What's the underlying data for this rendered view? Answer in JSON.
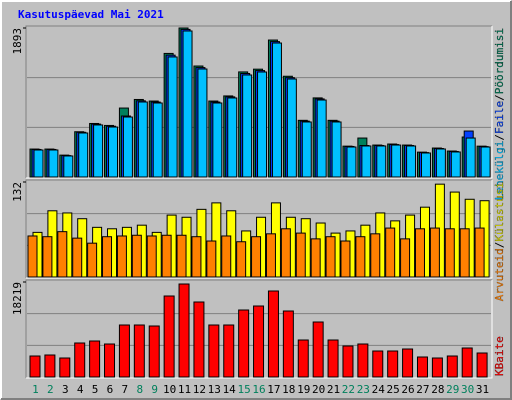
{
  "title": "Kasutuspäevad Mai 2021",
  "legend_separator": "/",
  "chart_data": [
    {
      "type": "bar",
      "ylim": [
        0,
        1893
      ],
      "yticks": [
        1893
      ],
      "series": [
        {
          "name": "Pöördumisi",
          "color": "#00805c",
          "values": [
            355,
            355,
            278,
            575,
            680,
            655,
            876,
            985,
            965,
            1570,
            1893,
            1410,
            965,
            1030,
            1335,
            1370,
            1740,
            1280,
            720,
            1005,
            720,
            392,
            495,
            406,
            419,
            406,
            316,
            368,
            330,
            508,
            392
          ]
        },
        {
          "name": "Faile",
          "color": "#0040ff",
          "values": [
            350,
            350,
            272,
            568,
            672,
            645,
            775,
            968,
            952,
            1548,
            1875,
            1390,
            952,
            1018,
            1315,
            1352,
            1720,
            1262,
            710,
            992,
            710,
            388,
            400,
            400,
            412,
            400,
            310,
            362,
            324,
            584,
            386
          ]
        },
        {
          "name": "Lehekülgi",
          "color": "#00c0ff",
          "values": [
            343,
            343,
            267,
            559,
            661,
            635,
            762,
            953,
            940,
            1525,
            1855,
            1372,
            940,
            1004,
            1296,
            1334,
            1702,
            1245,
            699,
            978,
            699,
            381,
            394,
            394,
            406,
            394,
            305,
            356,
            318,
            495,
            381
          ]
        }
      ]
    },
    {
      "type": "bar",
      "ylim": [
        0,
        132
      ],
      "yticks": [
        132
      ],
      "series": [
        {
          "name": "Külastusi",
          "color": "#ffff00",
          "values": [
            62,
            92,
            89,
            81,
            69,
            67,
            69,
            72,
            62,
            86,
            83,
            94,
            103,
            92,
            64,
            83,
            103,
            83,
            81,
            75,
            61,
            64,
            72,
            89,
            78,
            86,
            97,
            129,
            118,
            108,
            106
          ]
        },
        {
          "name": "Arvuteid",
          "color": "#ff8000",
          "values": [
            57,
            56,
            63,
            54,
            47,
            56,
            57,
            58,
            57,
            58,
            58,
            56,
            50,
            57,
            49,
            56,
            60,
            67,
            61,
            53,
            56,
            50,
            56,
            60,
            68,
            53,
            67,
            68,
            67,
            67,
            68
          ]
        }
      ]
    },
    {
      "type": "bar",
      "ylim": [
        0,
        18219
      ],
      "yticks": [
        18219
      ],
      "categories": [
        "1",
        "2",
        "3",
        "4",
        "5",
        "6",
        "7",
        "8",
        "9",
        "10",
        "11",
        "12",
        "13",
        "14",
        "15",
        "16",
        "17",
        "18",
        "19",
        "20",
        "21",
        "22",
        "23",
        "24",
        "25",
        "26",
        "27",
        "28",
        "29",
        "30",
        "31"
      ],
      "category_colors": [
        "#00805c",
        "#00805c",
        "#000000",
        "#000000",
        "#000000",
        "#000000",
        "#000000",
        "#00805c",
        "#00805c",
        "#000000",
        "#000000",
        "#000000",
        "#000000",
        "#000000",
        "#00805c",
        "#00805c",
        "#000000",
        "#000000",
        "#000000",
        "#000000",
        "#000000",
        "#00805c",
        "#00805c",
        "#000000",
        "#000000",
        "#000000",
        "#000000",
        "#000000",
        "#00805c",
        "#00805c",
        "#000000"
      ],
      "series": [
        {
          "name": "KBaite",
          "color": "#ff0000",
          "values": [
            4027,
            4219,
            3644,
            6521,
            6904,
            6329,
            9972,
            9972,
            9780,
            15534,
            17835,
            14384,
            9972,
            9972,
            12849,
            13616,
            16493,
            12657,
            7096,
            10548,
            7096,
            5945,
            6329,
            4986,
            4986,
            5370,
            3836,
            3644,
            4027,
            5562,
            4603
          ]
        }
      ]
    }
  ]
}
